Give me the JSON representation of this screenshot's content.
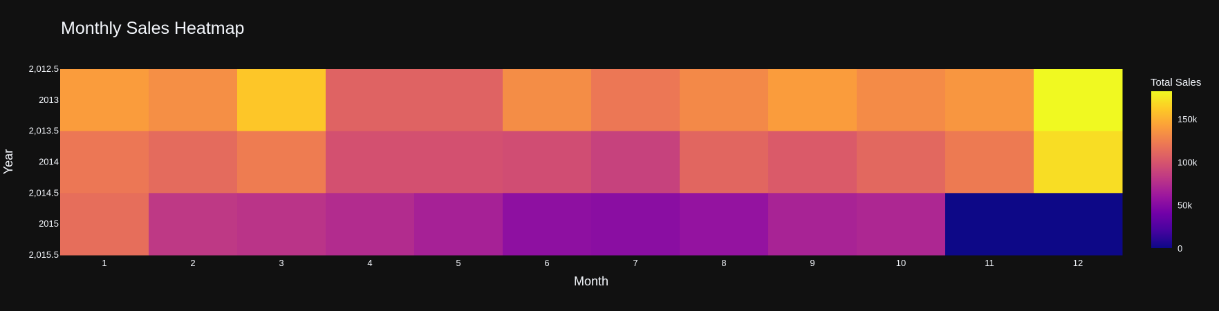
{
  "chart_data": {
    "type": "heatmap",
    "title": "Monthly Sales Heatmap",
    "xlabel": "Month",
    "ylabel": "Year",
    "x": [
      1,
      2,
      3,
      4,
      5,
      6,
      7,
      8,
      9,
      10,
      11,
      12
    ],
    "y": [
      2013,
      2014,
      2015
    ],
    "ylim": [
      2012.5,
      2015.5
    ],
    "y_tick_labels": [
      "2,012.5",
      "2013",
      "2,013.5",
      "2014",
      "2,014.5",
      "2015",
      "2,015.5"
    ],
    "y_tick_values": [
      2012.5,
      2013,
      2013.5,
      2014,
      2014.5,
      2015,
      2015.5
    ],
    "values": [
      [
        140000,
        133000,
        160000,
        108000,
        108000,
        132000,
        120000,
        130000,
        140000,
        131000,
        137000,
        182000
      ],
      [
        120000,
        113000,
        123000,
        97000,
        97000,
        95000,
        88000,
        110000,
        103000,
        111000,
        122000,
        170000
      ],
      [
        115000,
        82000,
        79000,
        74000,
        67000,
        54000,
        52000,
        57000,
        68000,
        71000,
        0,
        0
      ]
    ],
    "colorbar": {
      "title": "Total Sales",
      "range": [
        0,
        182000
      ],
      "tick_values": [
        0,
        50000,
        100000,
        150000
      ],
      "tick_labels": [
        "0",
        "50k",
        "100k",
        "150k"
      ]
    },
    "colorscale": [
      "#0d0887",
      "#46039f",
      "#7201a8",
      "#9c179e",
      "#bd3786",
      "#d8576b",
      "#ed7953",
      "#fb9f3a",
      "#fdca26",
      "#f0f921"
    ],
    "background": "#111111",
    "text_color": "#f2f5fa"
  }
}
